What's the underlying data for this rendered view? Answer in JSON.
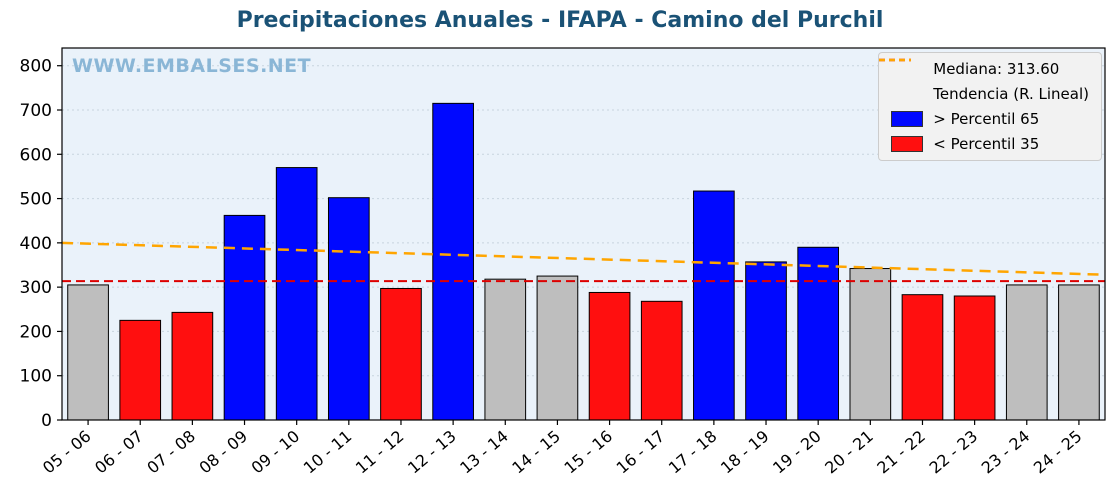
{
  "title": "Precipitaciones Anuales - IFAPA - Camino del Purchil",
  "watermark": "WWW.EMBALSES.NET",
  "legend": {
    "items": [
      {
        "label": "Mediana: 313.60",
        "swatch": "dashed",
        "color_key": "median"
      },
      {
        "label": "Tendencia (R. Lineal)",
        "swatch": "dashed",
        "color_key": "trend"
      },
      {
        "label": " > Percentil 65",
        "swatch": "box",
        "color_key": "blue"
      },
      {
        "label": " < Percentil 35",
        "swatch": "box",
        "color_key": "red"
      }
    ]
  },
  "chart_data": {
    "type": "bar",
    "title": "Precipitaciones Anuales - IFAPA - Camino del Purchil",
    "xlabel": "",
    "ylabel": "",
    "categories": [
      "05 - 06",
      "06 - 07",
      "07 - 08",
      "08 - 09",
      "09 - 10",
      "10 - 11",
      "11 - 12",
      "12 - 13",
      "13 - 14",
      "14 - 15",
      "15 - 16",
      "16 - 17",
      "17 - 18",
      "18 - 19",
      "19 - 20",
      "20 - 21",
      "21 - 22",
      "22 - 23",
      "23 - 24",
      "24 - 25"
    ],
    "values": [
      305,
      225,
      243,
      462,
      570,
      502,
      297,
      715,
      318,
      325,
      288,
      268,
      517,
      357,
      390,
      342,
      283,
      280,
      305,
      305
    ],
    "bar_classes": [
      "gray",
      "red",
      "red",
      "blue",
      "blue",
      "blue",
      "red",
      "blue",
      "gray",
      "gray",
      "red",
      "red",
      "blue",
      "blue",
      "blue",
      "gray",
      "red",
      "red",
      "gray",
      "gray"
    ],
    "median": 313.6,
    "trend": {
      "start": 400,
      "end": 328
    },
    "ylim": [
      0,
      840
    ],
    "yticks": [
      0,
      100,
      200,
      300,
      400,
      500,
      600,
      700,
      800
    ],
    "grid": true,
    "legend_position": "upper right",
    "colors": {
      "blue": "#0008ff",
      "red": "#ff0f0f",
      "gray": "#bebebe",
      "median": "#dd0000",
      "trend": "#ffa500",
      "plot_bg": "#eaf2fa",
      "grid": "#c8d4de",
      "title": "#1a5276",
      "watermark": "#8ab6d6",
      "bar_edge": "#000000"
    }
  }
}
